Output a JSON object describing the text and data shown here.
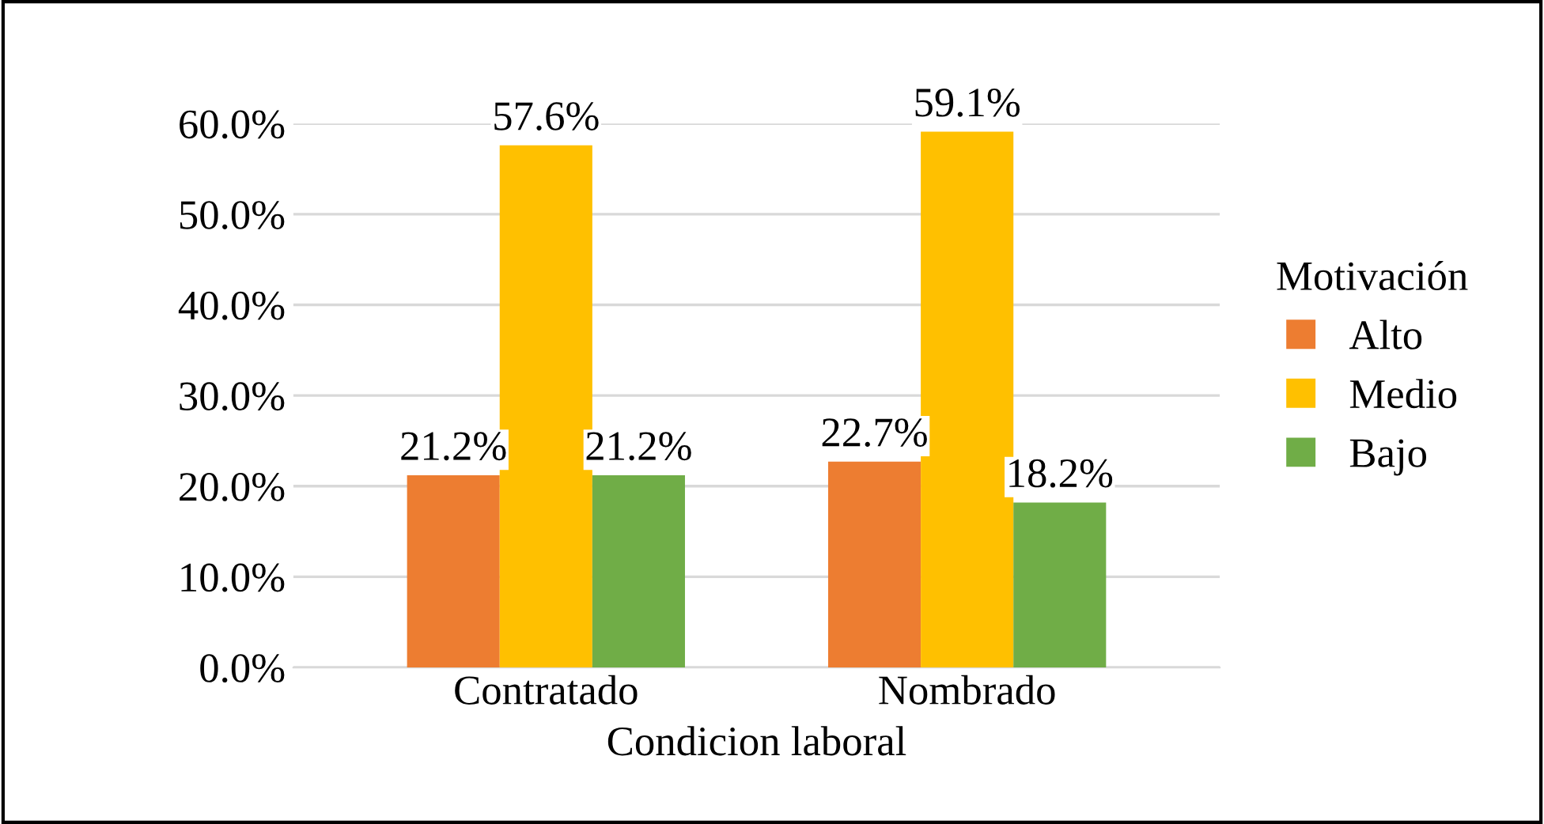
{
  "chart_data": {
    "type": "bar",
    "xlabel": "Condicion laboral",
    "legend_title": "Motivación",
    "categories": [
      "Contratado",
      "Nombrado"
    ],
    "series": [
      {
        "name": "Alto",
        "color": "#ed7d31",
        "values": [
          21.2,
          22.7
        ],
        "value_labels": [
          "21.2%",
          "22.7%"
        ]
      },
      {
        "name": "Medio",
        "color": "#ffc000",
        "values": [
          57.6,
          59.1
        ],
        "value_labels": [
          "57.6%",
          "59.1%"
        ]
      },
      {
        "name": "Bajo",
        "color": "#70ad47",
        "values": [
          21.2,
          18.2
        ],
        "value_labels": [
          "21.2%",
          "18.2%"
        ]
      }
    ],
    "ylim": [
      0,
      60
    ],
    "yticks": [
      {
        "value": 0,
        "label": "0.0%"
      },
      {
        "value": 10,
        "label": "10.0%"
      },
      {
        "value": 20,
        "label": "20.0%"
      },
      {
        "value": 30,
        "label": "30.0%"
      },
      {
        "value": 40,
        "label": "40.0%"
      },
      {
        "value": 50,
        "label": "50.0%"
      },
      {
        "value": 60,
        "label": "60.0%"
      }
    ],
    "grid": "y",
    "legend": "right"
  }
}
